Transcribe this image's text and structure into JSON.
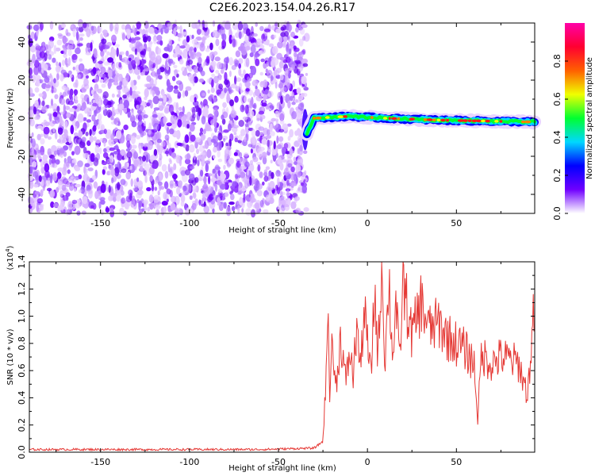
{
  "chart_data": [
    {
      "type": "heatmap",
      "title": "C2E6.2023.154.04.26.R17",
      "xlabel": "Height of straight line (km)",
      "ylabel": "Frequency (Hz)",
      "xlim": [
        -190,
        94
      ],
      "ylim": [
        -50,
        50
      ],
      "x_ticks": [
        -150,
        -100,
        -50,
        0,
        50
      ],
      "y_ticks": [
        -40,
        -20,
        0,
        20,
        40
      ],
      "colorbar": {
        "label": "Normalized spectral amplitude",
        "range": [
          0,
          1
        ],
        "ticks": [
          0.0,
          0.2,
          0.4,
          0.6,
          0.8
        ],
        "colors": [
          "#ffffff",
          "#7000ff",
          "#0000ff",
          "#00d8ff",
          "#00ff30",
          "#f0ff00",
          "#ff6000",
          "#ff0030",
          "#ff00a8"
        ]
      },
      "noise_region_x": [
        -190,
        -34
      ],
      "signal": {
        "x_start": -34,
        "x_end": 94,
        "freq": [
          {
            "x": -34,
            "y": -8
          },
          {
            "x": -30,
            "y": 0
          },
          {
            "x": -10,
            "y": 1
          },
          {
            "x": 10,
            "y": 0
          },
          {
            "x": 40,
            "y": -1
          },
          {
            "x": 94,
            "y": -2
          }
        ]
      }
    },
    {
      "type": "line",
      "xlabel": "Height of straight line (km)",
      "ylabel": "SNR (10 * v/v)",
      "y_scale_label": "(x10",
      "y_scale_exp": "4",
      "y_scale_close": ")",
      "xlim": [
        -190,
        94
      ],
      "ylim": [
        0,
        1.4
      ],
      "x_ticks": [
        -150,
        -100,
        -50,
        0,
        50
      ],
      "y_ticks": [
        "0.0",
        "0.2",
        "0.4",
        "0.6",
        "0.8",
        "1.0",
        "1.2",
        "1.4"
      ],
      "line_color": "#e53935",
      "series": [
        {
          "x": [
            -190,
            -60,
            -30,
            -25,
            -23,
            -22,
            -21,
            -20,
            -18,
            -15,
            -12,
            -10,
            -8,
            -6,
            -4,
            -2,
            0,
            2,
            4,
            6,
            8,
            10,
            12,
            14,
            16,
            18,
            20,
            25,
            30,
            35,
            40,
            45,
            50,
            55,
            60,
            62,
            64,
            66,
            70,
            75,
            80,
            85,
            90,
            94
          ],
          "y": [
            0.02,
            0.02,
            0.03,
            0.08,
            0.6,
            1.15,
            0.3,
            0.9,
            0.45,
            0.85,
            0.5,
            0.75,
            0.55,
            0.95,
            0.6,
            1.05,
            0.8,
            0.55,
            1.2,
            0.7,
            1.4,
            0.65,
            1.3,
            0.7,
            1.1,
            0.65,
            1.25,
            0.85,
            1.1,
            0.9,
            0.95,
            0.85,
            0.8,
            0.75,
            0.65,
            0.25,
            0.7,
            0.7,
            0.65,
            0.7,
            0.68,
            0.65,
            0.42,
            1.1
          ]
        }
      ]
    }
  ]
}
